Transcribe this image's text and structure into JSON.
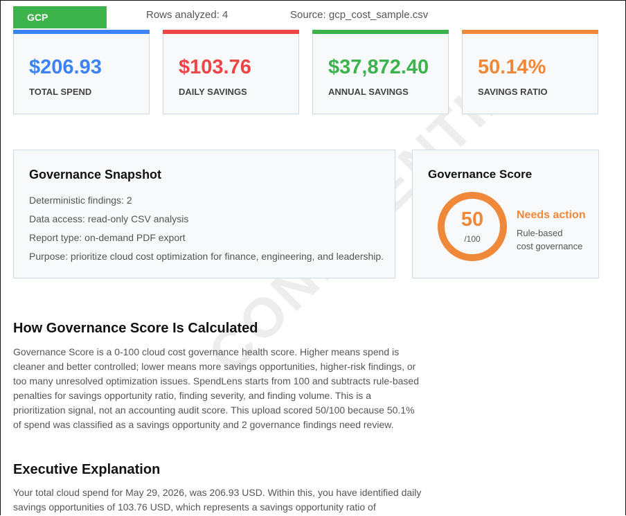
{
  "header": {
    "badge": "GCP",
    "rows": "Rows analyzed: 4",
    "source": "Source: gcp_cost_sample.csv"
  },
  "cards": [
    {
      "value": "$206.93",
      "label": "TOTAL SPEND",
      "color": "#3b82f6"
    },
    {
      "value": "$103.76",
      "label": "DAILY SAVINGS",
      "color": "#ef4444"
    },
    {
      "value": "$37,872.40",
      "label": "ANNUAL SAVINGS",
      "color": "#3cb44b"
    },
    {
      "value": "50.14%",
      "label": "SAVINGS RATIO",
      "color": "#f0883a"
    }
  ],
  "snapshot": {
    "title": "Governance Snapshot",
    "lines": [
      "Deterministic findings: 2",
      "Data access: read-only CSV analysis",
      "Report type: on-demand PDF export",
      "Purpose: prioritize cloud cost optimization for finance, engineering, and leadership."
    ]
  },
  "score": {
    "title": "Governance Score",
    "value": "50",
    "max": "/100",
    "status": "Needs action",
    "note1": "Rule-based",
    "note2": "cost governance"
  },
  "watermark": "CONFIDENTIAL",
  "sections": [
    {
      "heading": "How Governance Score Is Calculated",
      "text": "Governance Score is a 0-100 cloud cost governance health score. Higher means spend is cleaner and better controlled; lower means more savings opportunities, higher-risk findings, or too many unresolved optimization issues. SpendLens starts from 100 and subtracts rule-based penalties for savings opportunity ratio, finding severity, and finding volume. This is a prioritization signal, not an accounting audit score. This upload scored 50/100 because 50.1% of spend was classified as a savings opportunity and 2 governance findings need review."
    },
    {
      "heading": "Executive Explanation",
      "text": "Your total cloud spend for May 29, 2026, was 206.93 USD. Within this, you have identified daily savings opportunities of 103.76 USD, which represents a savings opportunity ratio of"
    }
  ]
}
